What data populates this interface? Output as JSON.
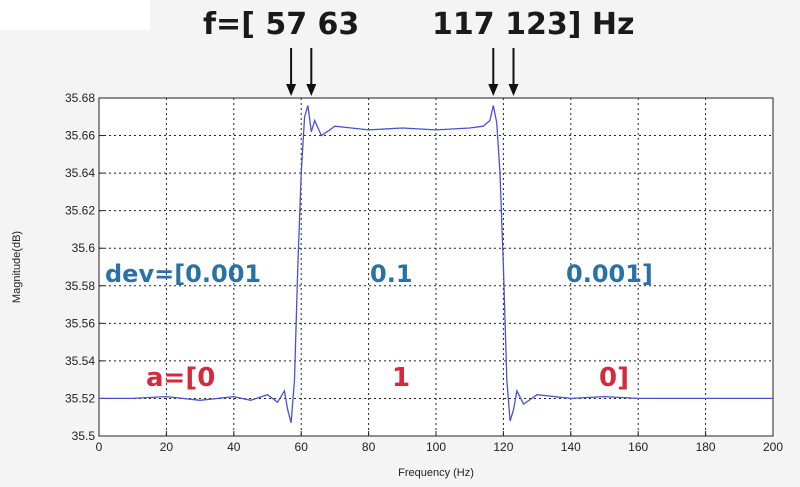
{
  "header": {
    "f_part1": "f=[ 57  63",
    "f_part2": "117  123]  Hz"
  },
  "annotations": {
    "dev": [
      "dev=[0.001",
      "0.1",
      "0.001]"
    ],
    "a": [
      "a=[0",
      "1",
      "0]"
    ]
  },
  "colors": {
    "line": "#4a50d4",
    "dev_text": "#2a72a6",
    "a_text": "#d42a3c",
    "grid": "#222222"
  },
  "chart_data": {
    "type": "line",
    "xlabel": "Frequency (Hz)",
    "ylabel": "Magnitude(dB)",
    "xlim": [
      0,
      200
    ],
    "ylim": [
      35.5,
      35.68
    ],
    "xticks": [
      0,
      20,
      40,
      60,
      80,
      100,
      120,
      140,
      160,
      180,
      200
    ],
    "yticks": [
      35.5,
      35.52,
      35.54,
      35.56,
      35.58,
      35.6,
      35.62,
      35.64,
      35.66,
      35.68
    ],
    "ytick_labels": [
      "35.5",
      "35.52",
      "35.54",
      "35.56",
      "35.58",
      "35.6",
      "35.62",
      "35.64",
      "35.66",
      "35.68"
    ],
    "grid": true,
    "markers_x": [
      57,
      63,
      117,
      123
    ],
    "series": [
      {
        "x": [
          0,
          10,
          20,
          30,
          40,
          45,
          50,
          53,
          55,
          56,
          57,
          58,
          59,
          60,
          61,
          62,
          63,
          64,
          66,
          70,
          80,
          90,
          100,
          110,
          114,
          116,
          117,
          118,
          119,
          120,
          121,
          122,
          123,
          124,
          126,
          130,
          140,
          150,
          160,
          170,
          180,
          190,
          200
        ],
        "y": [
          35.52,
          35.52,
          35.521,
          35.519,
          35.521,
          35.519,
          35.522,
          35.518,
          35.524,
          35.514,
          35.507,
          35.53,
          35.59,
          35.64,
          35.67,
          35.676,
          35.662,
          35.668,
          35.66,
          35.665,
          35.663,
          35.664,
          35.663,
          35.664,
          35.665,
          35.668,
          35.676,
          35.667,
          35.64,
          35.59,
          35.53,
          35.508,
          35.514,
          35.524,
          35.517,
          35.522,
          35.52,
          35.521,
          35.52,
          35.52,
          35.52,
          35.52,
          35.52
        ]
      }
    ]
  }
}
